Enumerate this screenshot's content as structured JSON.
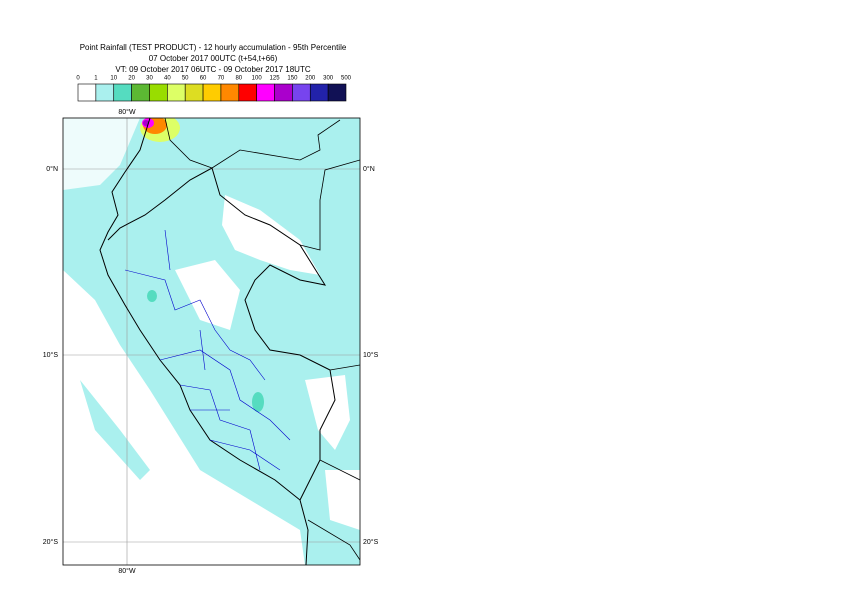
{
  "header": {
    "title": "Point Rainfall (TEST PRODUCT) - 12 hourly accumulation - 95th Percentile",
    "subtitle": "07 October 2017 00UTC (t+54,t+66)",
    "valid_time": "VT: 09 October 2017 06UTC - 09 October 2017 18UTC"
  },
  "legend": {
    "ticks": [
      0,
      1,
      10,
      20,
      30,
      40,
      50,
      60,
      70,
      80,
      100,
      125,
      150,
      200,
      300,
      500
    ],
    "colors": [
      "#ffffff",
      "#aaf0ee",
      "#55dcc0",
      "#5cb833",
      "#99dd00",
      "#ddff66",
      "#dddd22",
      "#ffcc00",
      "#ff8800",
      "#ff0000",
      "#ff00ff",
      "#aa00cc",
      "#7744ee",
      "#2222aa",
      "#111155"
    ]
  },
  "map": {
    "lon_labels": [
      "80°W",
      "80°W"
    ],
    "lat_labels": [
      "0°N",
      "10°S",
      "20°S"
    ]
  }
}
